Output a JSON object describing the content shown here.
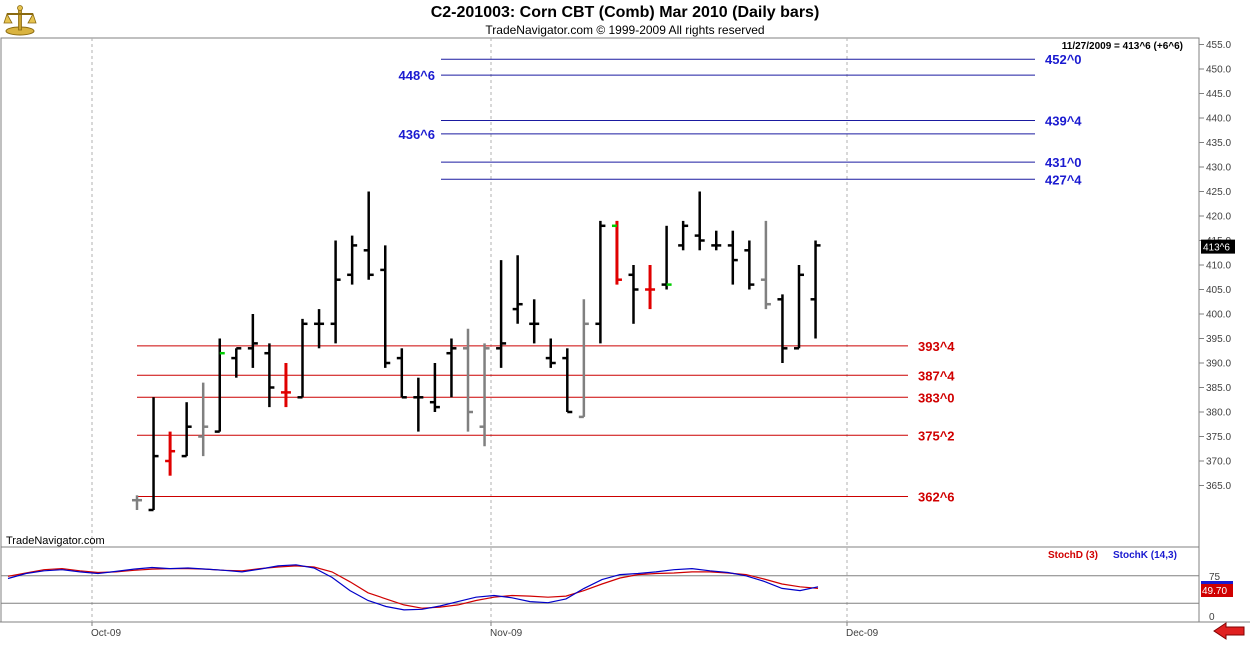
{
  "chart_data": [
    {
      "type": "ohlc",
      "title": "C2-201003:  Corn CBT (Comb) Mar 2010  (Daily bars)",
      "subtitle": "TradeNavigator.com © 1999-2009 All rights reserved",
      "watermark": "TradeNavigator.com",
      "last_price_readout": "11/27/2009 = 413^6 (+6^6)",
      "last_price_marker": "413^6",
      "ylim": [
        360,
        456
      ],
      "y_ticks": [
        365,
        370,
        375,
        380,
        385,
        390,
        395,
        400,
        405,
        410,
        415,
        420,
        425,
        430,
        435,
        440,
        445,
        450,
        455
      ],
      "y_tick_labels": [
        "365.0",
        "370.0",
        "375.0",
        "380.0",
        "385.0",
        "390.0",
        "395.0",
        "400.0",
        "405.0",
        "410.0",
        "415.0",
        "420.0",
        "425.0",
        "430.0",
        "435.0",
        "440.0",
        "445.0",
        "450.0",
        "455.0"
      ],
      "x_labels": [
        "Oct-09",
        "Nov-09",
        "Dec-09"
      ],
      "grid": "vertical dashed at month starts",
      "bars": [
        {
          "o": 362,
          "h": 363,
          "l": 360,
          "c": 362,
          "color": "#808080"
        },
        {
          "o": 360,
          "h": 383,
          "l": 360,
          "c": 371,
          "color": "#000000"
        },
        {
          "o": 370,
          "h": 376,
          "l": 367,
          "c": 372,
          "color": "#e00000"
        },
        {
          "o": 371,
          "h": 382,
          "l": 371,
          "c": 377,
          "color": "#000000"
        },
        {
          "o": 375,
          "h": 386,
          "l": 371,
          "c": 377,
          "color": "#808080"
        },
        {
          "o": 376,
          "h": 395,
          "l": 376,
          "c": 392,
          "color": "#000000",
          "close_color": "#00cc00"
        },
        {
          "o": 391,
          "h": 393,
          "l": 387,
          "c": 393,
          "color": "#000000"
        },
        {
          "o": 393,
          "h": 400,
          "l": 389,
          "c": 394,
          "color": "#000000"
        },
        {
          "o": 392,
          "h": 394,
          "l": 381,
          "c": 385,
          "color": "#000000"
        },
        {
          "o": 384,
          "h": 390,
          "l": 381,
          "c": 384,
          "color": "#e00000"
        },
        {
          "o": 383,
          "h": 399,
          "l": 383,
          "c": 398,
          "color": "#000000"
        },
        {
          "o": 398,
          "h": 401,
          "l": 393,
          "c": 398,
          "color": "#000000"
        },
        {
          "o": 398,
          "h": 415,
          "l": 394,
          "c": 407,
          "color": "#000000"
        },
        {
          "o": 408,
          "h": 416,
          "l": 406,
          "c": 414,
          "color": "#000000"
        },
        {
          "o": 413,
          "h": 425,
          "l": 407,
          "c": 408,
          "color": "#000000"
        },
        {
          "o": 409,
          "h": 414,
          "l": 389,
          "c": 390,
          "color": "#000000"
        },
        {
          "o": 391,
          "h": 393,
          "l": 383,
          "c": 383,
          "color": "#000000"
        },
        {
          "o": 383,
          "h": 387,
          "l": 376,
          "c": 383,
          "color": "#000000"
        },
        {
          "o": 382,
          "h": 390,
          "l": 380,
          "c": 381,
          "color": "#000000"
        },
        {
          "o": 392,
          "h": 395,
          "l": 383,
          "c": 393,
          "color": "#000000"
        },
        {
          "o": 393,
          "h": 397,
          "l": 376,
          "c": 380,
          "color": "#808080"
        },
        {
          "o": 377,
          "h": 394,
          "l": 373,
          "c": 393,
          "color": "#808080"
        },
        {
          "o": 393,
          "h": 411,
          "l": 389,
          "c": 394,
          "color": "#000000"
        },
        {
          "o": 401,
          "h": 412,
          "l": 398,
          "c": 402,
          "color": "#000000"
        },
        {
          "o": 398,
          "h": 403,
          "l": 394,
          "c": 398,
          "color": "#000000"
        },
        {
          "o": 391,
          "h": 395,
          "l": 389,
          "c": 390,
          "color": "#000000"
        },
        {
          "o": 391,
          "h": 393,
          "l": 380,
          "c": 380,
          "color": "#000000"
        },
        {
          "o": 379,
          "h": 403,
          "l": 379,
          "c": 398,
          "color": "#808080"
        },
        {
          "o": 398,
          "h": 419,
          "l": 394,
          "c": 418,
          "color": "#000000"
        },
        {
          "o": 418,
          "h": 419,
          "l": 406,
          "c": 407,
          "color": "#e00000",
          "open_color": "#00cc00"
        },
        {
          "o": 408,
          "h": 410,
          "l": 398,
          "c": 405,
          "color": "#000000"
        },
        {
          "o": 405,
          "h": 410,
          "l": 401,
          "c": 405,
          "color": "#e00000"
        },
        {
          "o": 406,
          "h": 418,
          "l": 405,
          "c": 406,
          "color": "#000000",
          "close_color": "#00cc00"
        },
        {
          "o": 414,
          "h": 419,
          "l": 413,
          "c": 418,
          "color": "#000000"
        },
        {
          "o": 416,
          "h": 425,
          "l": 413,
          "c": 415,
          "color": "#000000"
        },
        {
          "o": 414,
          "h": 417,
          "l": 413,
          "c": 414,
          "color": "#000000"
        },
        {
          "o": 414,
          "h": 417,
          "l": 406,
          "c": 411,
          "color": "#000000"
        },
        {
          "o": 413,
          "h": 415,
          "l": 405,
          "c": 406,
          "color": "#000000"
        },
        {
          "o": 407,
          "h": 419,
          "l": 401,
          "c": 402,
          "color": "#808080"
        },
        {
          "o": 403,
          "h": 404,
          "l": 390,
          "c": 393,
          "color": "#000000"
        },
        {
          "o": 393,
          "h": 410,
          "l": 393,
          "c": 408,
          "color": "#000000"
        },
        {
          "o": 403,
          "h": 415,
          "l": 395,
          "c": 414,
          "color": "#000000"
        }
      ],
      "levels_blue": [
        {
          "value": 452.0,
          "label": "452^0"
        },
        {
          "value": 448.75,
          "label": "448^6"
        },
        {
          "value": 439.5,
          "label": "439^4"
        },
        {
          "value": 436.75,
          "label": "436^6"
        },
        {
          "value": 431.0,
          "label": "431^0"
        },
        {
          "value": 427.5,
          "label": "427^4"
        }
      ],
      "levels_red": [
        {
          "value": 393.5,
          "label": "393^4"
        },
        {
          "value": 387.5,
          "label": "387^4"
        },
        {
          "value": 383.0,
          "label": "383^0"
        },
        {
          "value": 375.25,
          "label": "375^2"
        },
        {
          "value": 362.75,
          "label": "362^6"
        }
      ]
    },
    {
      "type": "line",
      "panel": "stochastic",
      "ylim": [
        0,
        100
      ],
      "y_tick_labels": [
        "75",
        "0"
      ],
      "last_value_marker": "49.70",
      "reference_levels": [
        75,
        25
      ],
      "series": [
        {
          "name": "StochD (3)",
          "color": "#d00000",
          "values": [
            74,
            80,
            86,
            88,
            84,
            81,
            82,
            85,
            87,
            88,
            88,
            87,
            85,
            84,
            88,
            91,
            93,
            91,
            82,
            64,
            44,
            33,
            22,
            16,
            18,
            22,
            30,
            36,
            39,
            38,
            36,
            38,
            48,
            60,
            71,
            77,
            79,
            80,
            82,
            82,
            80,
            77,
            69,
            60,
            55,
            52
          ]
        },
        {
          "name": "StochK (14,3)",
          "color": "#0000c8",
          "values": [
            70,
            79,
            84,
            86,
            82,
            79,
            83,
            87,
            90,
            88,
            89,
            87,
            85,
            82,
            87,
            93,
            95,
            89,
            72,
            48,
            30,
            19,
            13,
            14,
            20,
            28,
            36,
            39,
            35,
            28,
            26,
            33,
            52,
            68,
            77,
            79,
            82,
            86,
            88,
            84,
            81,
            75,
            65,
            52,
            48,
            55
          ]
        }
      ]
    }
  ]
}
